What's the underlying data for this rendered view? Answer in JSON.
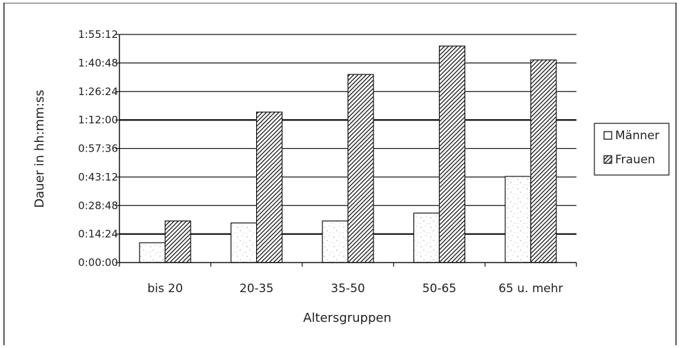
{
  "chart_data": {
    "type": "bar",
    "xlabel": "Altersgruppen",
    "ylabel": "Dauer in hh:mm:ss",
    "ylim": [
      0,
      6912
    ],
    "y_ticks": [
      "0:00:00",
      "0:14:24",
      "0:28:48",
      "0:43:12",
      "0:57:36",
      "1:12:00",
      "1:26:24",
      "1:40:48",
      "1:55:12"
    ],
    "categories": [
      "bis 20",
      "20-35",
      "35-50",
      "50-65",
      "65 u. mehr"
    ],
    "series": [
      {
        "name": "Männer",
        "values": [
          600,
          1200,
          1260,
          1500,
          2610
        ]
      },
      {
        "name": "Frauen",
        "values": [
          1260,
          4560,
          5700,
          6560,
          6140
        ]
      }
    ],
    "grid": true,
    "legend_position": "right"
  }
}
